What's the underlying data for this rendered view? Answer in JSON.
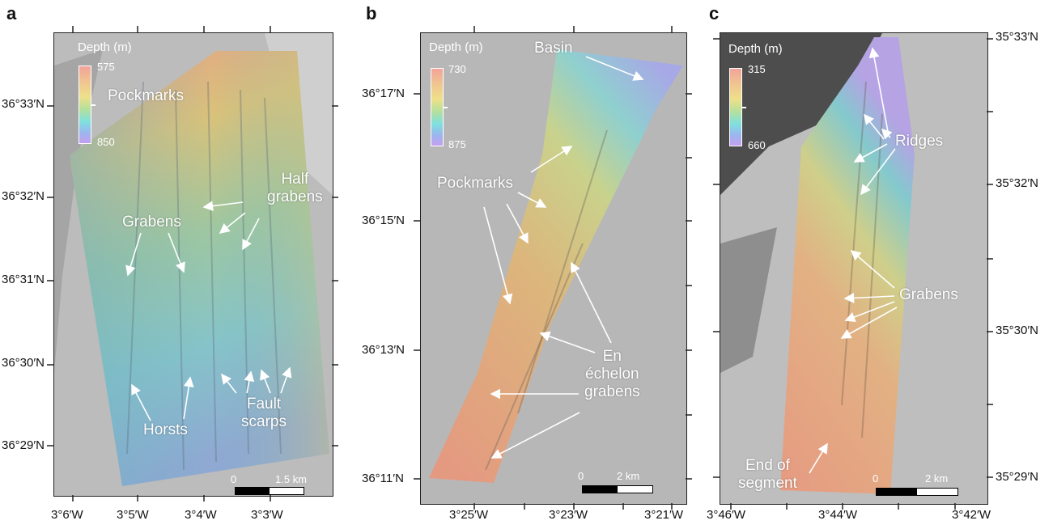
{
  "panels": [
    {
      "letter": "a",
      "depth_title": "Depth (m)",
      "depth_top": "575",
      "depth_bottom": "850",
      "lat_labels": [
        "36°33′N",
        "36°32′N",
        "36°31′N",
        "36°30′N",
        "36°29′N"
      ],
      "lon_labels": [
        "3°6′W",
        "3°5′W",
        "3°4′W",
        "3°3′W"
      ],
      "annotations": {
        "pockmarks": "Pockmarks",
        "half_grabens": "Half\ngrabens",
        "grabens": "Grabens",
        "horsts": "Horsts",
        "fault_scarps": "Fault\nscarps"
      },
      "scale": {
        "zero": "0",
        "end": "1.5 km"
      }
    },
    {
      "letter": "b",
      "depth_title": "Depth (m)",
      "depth_top": "730",
      "depth_bottom": "875",
      "lat_labels": [
        "36°17′N",
        "36°15′N",
        "36°13′N",
        "36°11′N"
      ],
      "lon_labels": [
        "3°25′W",
        "3°23′W",
        "3°21′W"
      ],
      "annotations": {
        "basin": "Basin",
        "pockmarks": "Pockmarks",
        "en_echelon": "En\néchelon\ngrabens"
      },
      "scale": {
        "zero": "0",
        "end": "2 km"
      }
    },
    {
      "letter": "c",
      "depth_title": "Depth (m)",
      "depth_top": "315",
      "depth_bottom": "660",
      "lat_labels": [
        "35°33′N",
        "35°32′N",
        "35°30′N",
        "35°29′N"
      ],
      "lon_labels": [
        "3°46′W",
        "3°44′W",
        "3°42′W"
      ],
      "annotations": {
        "ridges": "Ridges",
        "grabens": "Grabens",
        "end_of_segment": "End of\nsegment"
      },
      "scale": {
        "zero": "0",
        "end": "2 km"
      }
    }
  ]
}
